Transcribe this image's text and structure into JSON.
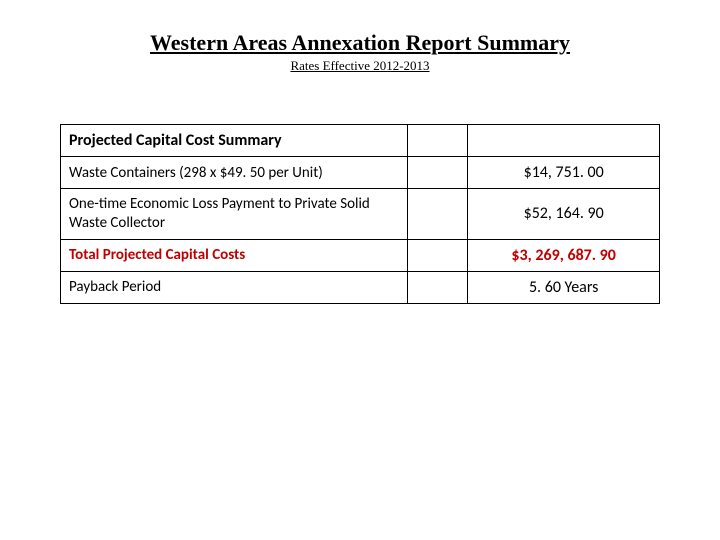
{
  "title": "Western Areas Annexation Report Summary",
  "subtitle": "Rates Effective 2012-2013",
  "table": {
    "header": "Projected Capital Cost Summary",
    "rows": [
      {
        "desc": "Waste Containers (298  x $49. 50 per Unit)",
        "value": "$14, 751. 00"
      },
      {
        "desc": "One-time Economic Loss Payment to Private Solid Waste Collector",
        "value": "$52, 164. 90"
      }
    ],
    "total": {
      "desc": "Total Projected Capital Costs",
      "value": "$3, 269, 687. 90"
    },
    "payback": {
      "desc": "Payback Period",
      "value": "5. 60 Years"
    }
  },
  "colors": {
    "text": "#000000",
    "accent": "#c00000",
    "border": "#000000",
    "background": "#ffffff"
  }
}
